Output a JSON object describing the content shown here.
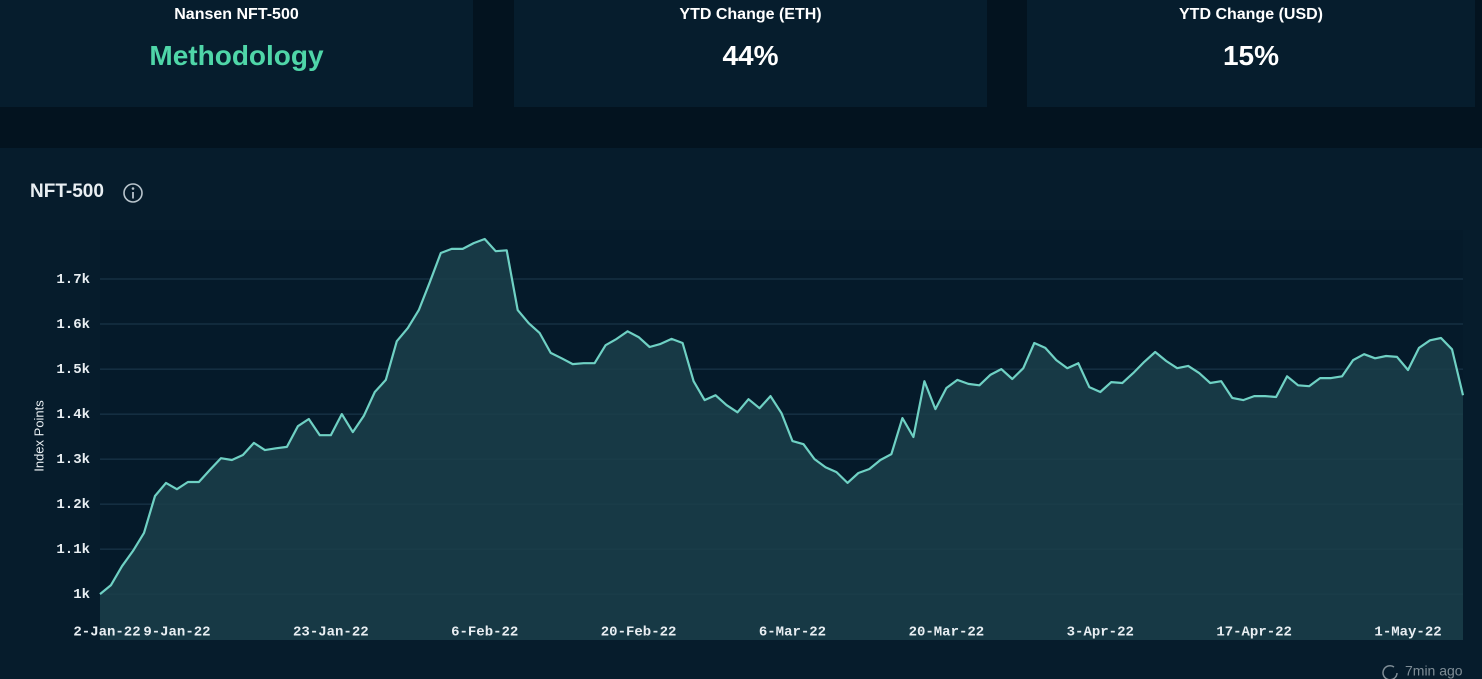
{
  "cards": [
    {
      "title": "Nansen NFT-500",
      "value": "Methodology"
    },
    {
      "title": "YTD Change (ETH)",
      "value": "44%"
    },
    {
      "title": "YTD Change (USD)",
      "value": "15%"
    }
  ],
  "chart_data": {
    "type": "area",
    "title": "NFT-500",
    "ylabel": "Index Points",
    "updated": "7min ago",
    "color": "#6fd1c4",
    "fill": "#1b3f4a",
    "grid": true,
    "categories": [
      "2-Jan-22",
      null,
      null,
      null,
      null,
      null,
      null,
      "9-Jan-22",
      null,
      null,
      null,
      null,
      null,
      null,
      null,
      null,
      null,
      null,
      null,
      null,
      null,
      "23-Jan-22",
      null,
      null,
      null,
      null,
      null,
      null,
      null,
      null,
      null,
      null,
      null,
      null,
      null,
      "6-Feb-22",
      null,
      null,
      null,
      null,
      null,
      null,
      null,
      null,
      null,
      null,
      null,
      null,
      null,
      "20-Feb-22",
      null,
      null,
      null,
      null,
      null,
      null,
      null,
      null,
      null,
      null,
      null,
      null,
      null,
      "6-Mar-22",
      null,
      null,
      null,
      null,
      null,
      null,
      null,
      null,
      null,
      null,
      null,
      null,
      null,
      "20-Mar-22",
      null,
      null,
      null,
      null,
      null,
      null,
      null,
      null,
      null,
      null,
      null,
      null,
      null,
      "3-Apr-22",
      null,
      null,
      null,
      null,
      null,
      null,
      null,
      null,
      null,
      null,
      null,
      null,
      null,
      "17-Apr-22",
      null,
      null,
      null,
      null,
      null,
      null,
      null,
      null,
      null,
      null,
      null,
      null,
      null,
      "1-May-22",
      null,
      null,
      null,
      null,
      null
    ],
    "values": [
      1000,
      1020,
      1062,
      1096,
      1136,
      1218,
      1247,
      1233,
      1249,
      1249,
      1276,
      1302,
      1298,
      1309,
      1336,
      1320,
      1324,
      1327,
      1373,
      1389,
      1353,
      1353,
      1400,
      1360,
      1396,
      1449,
      1476,
      1562,
      1591,
      1631,
      1693,
      1758,
      1767,
      1767,
      1780,
      1789,
      1762,
      1764,
      1631,
      1602,
      1580,
      1536,
      1524,
      1511,
      1513,
      1513,
      1553,
      1567,
      1584,
      1571,
      1549,
      1556,
      1567,
      1558,
      1473,
      1431,
      1442,
      1420,
      1404,
      1433,
      1413,
      1440,
      1402,
      1340,
      1333,
      1300,
      1282,
      1271,
      1247,
      1269,
      1278,
      1298,
      1311,
      1391,
      1349,
      1473,
      1411,
      1458,
      1476,
      1467,
      1464,
      1487,
      1500,
      1478,
      1502,
      1558,
      1547,
      1520,
      1502,
      1513,
      1460,
      1449,
      1471,
      1469,
      1491,
      1516,
      1538,
      1518,
      1502,
      1507,
      1491,
      1469,
      1473,
      1436,
      1431,
      1440,
      1440,
      1438,
      1484,
      1464,
      1462,
      1480,
      1480,
      1484,
      1520,
      1533,
      1524,
      1529,
      1527,
      1498,
      1547,
      1564,
      1569,
      1544,
      1442
    ],
    "ylim": [
      898,
      1809
    ],
    "yticks": [
      {
        "value": 1000,
        "label": "1k"
      },
      {
        "value": 1100,
        "label": "1.1k"
      },
      {
        "value": 1200,
        "label": "1.2k"
      },
      {
        "value": 1300,
        "label": "1.3k"
      },
      {
        "value": 1400,
        "label": "1.4k"
      },
      {
        "value": 1500,
        "label": "1.5k"
      },
      {
        "value": 1600,
        "label": "1.6k"
      },
      {
        "value": 1700,
        "label": "1.7k"
      }
    ]
  }
}
